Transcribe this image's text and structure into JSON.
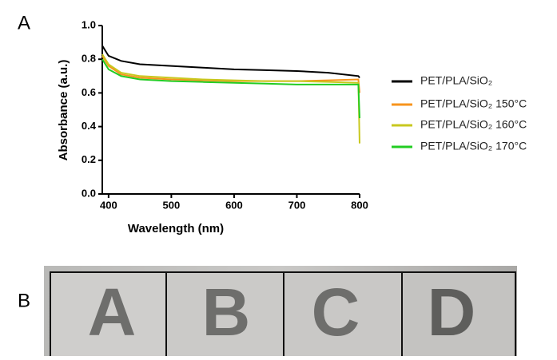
{
  "panel_labels": [
    "A",
    "B"
  ],
  "chart_data": {
    "type": "line",
    "xlabel": "Wavelength (nm)",
    "ylabel": "Absorbance (a.u.)",
    "x": [
      390,
      400,
      420,
      450,
      500,
      550,
      600,
      650,
      700,
      750,
      798,
      800
    ],
    "series": [
      {
        "name": "PET/PLA/SiO₂",
        "color": "#000000",
        "values": [
          0.88,
          0.82,
          0.79,
          0.77,
          0.76,
          0.75,
          0.74,
          0.735,
          0.73,
          0.72,
          0.7,
          0.69
        ]
      },
      {
        "name": "PET/PLA/SiO₂ 150°C",
        "color": "#f7941d",
        "values": [
          0.82,
          0.76,
          0.71,
          0.69,
          0.68,
          0.675,
          0.67,
          0.67,
          0.67,
          0.675,
          0.68,
          0.6
        ]
      },
      {
        "name": "PET/PLA/SiO₂ 160°C",
        "color": "#c8c81e",
        "values": [
          0.83,
          0.77,
          0.72,
          0.7,
          0.69,
          0.68,
          0.675,
          0.67,
          0.67,
          0.665,
          0.66,
          0.3
        ]
      },
      {
        "name": "PET/PLA/SiO₂ 170°C",
        "color": "#22cc22",
        "values": [
          0.8,
          0.74,
          0.7,
          0.68,
          0.67,
          0.665,
          0.66,
          0.655,
          0.65,
          0.65,
          0.65,
          0.45
        ]
      }
    ],
    "xlim": [
      390,
      800
    ],
    "ylim": [
      0,
      1
    ],
    "xticks": [
      400,
      500,
      600,
      700,
      800
    ],
    "yticks": [
      {
        "value": 0,
        "label": "0.0"
      },
      0.2,
      0.4,
      0.6,
      0.8,
      {
        "value": 1,
        "label": "1.0"
      }
    ],
    "grid": false,
    "legend": "right"
  },
  "photo": {
    "labels": [
      "A",
      "B",
      "C",
      "D"
    ]
  }
}
